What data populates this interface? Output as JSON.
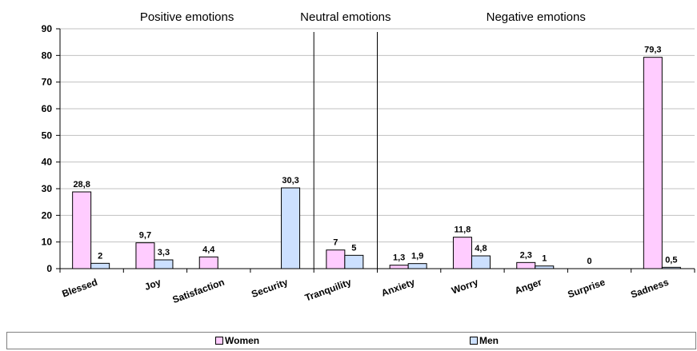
{
  "chart_data": {
    "type": "bar",
    "categories": [
      "Blessed",
      "Joy",
      "Satisfaction",
      "Security",
      "Tranquility",
      "Anxiety",
      "Worry",
      "Anger",
      "Surprise",
      "Sadness"
    ],
    "series": [
      {
        "name": "Women",
        "color": "#ffccff",
        "values": [
          28.8,
          9.7,
          4.4,
          null,
          7,
          1.3,
          11.8,
          2.3,
          0,
          79.3
        ],
        "labels": [
          "28,8",
          "9,7",
          "4,4",
          "",
          "7",
          "1,3",
          "11,8",
          "2,3",
          "0",
          "79,3"
        ]
      },
      {
        "name": "Men",
        "color": "#cce0ff",
        "values": [
          2,
          3.3,
          null,
          30.3,
          5,
          1.9,
          4.8,
          1,
          null,
          0.5
        ],
        "labels": [
          "2",
          "3,3",
          "",
          "30,3",
          "5",
          "1,9",
          "4,8",
          "1",
          "",
          "0,5"
        ]
      }
    ],
    "groups": [
      {
        "label": "Positive emotions",
        "categories": [
          "Blessed",
          "Joy",
          "Satisfaction",
          "Security"
        ]
      },
      {
        "label": "Neutral emotions",
        "categories": [
          "Tranquility"
        ]
      },
      {
        "label": "Negative emotions",
        "categories": [
          "Anxiety",
          "Worry",
          "Anger",
          "Surprise",
          "Sadness"
        ]
      }
    ],
    "yticks": [
      0,
      10,
      20,
      30,
      40,
      50,
      60,
      70,
      80,
      90
    ],
    "ylim": [
      0,
      90
    ],
    "grid": true,
    "legend_position": "bottom",
    "title": "",
    "xlabel": "",
    "ylabel": ""
  }
}
